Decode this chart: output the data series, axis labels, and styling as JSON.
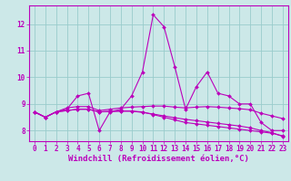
{
  "xlabel": "Windchill (Refroidissement éolien,°C)",
  "x": [
    0,
    1,
    2,
    3,
    4,
    5,
    6,
    7,
    8,
    9,
    10,
    11,
    12,
    13,
    14,
    15,
    16,
    17,
    18,
    19,
    20,
    21,
    22,
    23
  ],
  "line1": [
    8.7,
    8.5,
    8.7,
    8.8,
    9.3,
    9.4,
    8.0,
    8.7,
    8.8,
    9.3,
    10.2,
    12.35,
    11.9,
    10.4,
    8.8,
    9.65,
    10.2,
    9.4,
    9.3,
    9.0,
    9.0,
    8.3,
    8.0,
    8.0
  ],
  "line2": [
    8.7,
    8.5,
    8.7,
    8.85,
    8.9,
    8.9,
    8.75,
    8.8,
    8.85,
    8.88,
    8.9,
    8.92,
    8.92,
    8.88,
    8.85,
    8.88,
    8.9,
    8.88,
    8.85,
    8.82,
    8.78,
    8.65,
    8.55,
    8.45
  ],
  "line3": [
    8.7,
    8.5,
    8.7,
    8.75,
    8.8,
    8.8,
    8.7,
    8.72,
    8.73,
    8.73,
    8.7,
    8.6,
    8.5,
    8.4,
    8.3,
    8.25,
    8.2,
    8.15,
    8.1,
    8.05,
    8.0,
    7.95,
    7.9,
    7.8
  ],
  "line4": [
    8.7,
    8.5,
    8.7,
    8.75,
    8.8,
    8.8,
    8.7,
    8.72,
    8.73,
    8.73,
    8.68,
    8.62,
    8.55,
    8.48,
    8.42,
    8.37,
    8.32,
    8.27,
    8.22,
    8.17,
    8.1,
    8.0,
    7.92,
    7.78
  ],
  "line_color": "#bb00bb",
  "bg_color": "#cce8e8",
  "grid_color": "#99cccc",
  "ylim": [
    7.6,
    12.7
  ],
  "yticks": [
    8,
    9,
    10,
    11,
    12
  ],
  "xtick_labels": [
    "0",
    "1",
    "2",
    "3",
    "4",
    "5",
    "6",
    "7",
    "8",
    "9",
    "10",
    "11",
    "12",
    "13",
    "14",
    "15",
    "16",
    "17",
    "18",
    "19",
    "20",
    "21",
    "22",
    "23"
  ],
  "tick_fontsize": 5.5,
  "xlabel_fontsize": 6.5,
  "line_width": 0.8,
  "marker_size": 2.0
}
